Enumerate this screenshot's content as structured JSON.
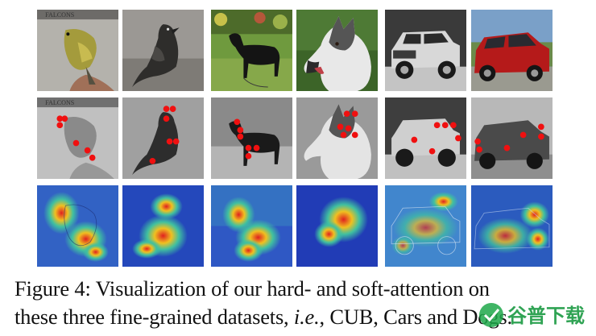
{
  "caption": {
    "line1": "Figure 4: Visualization of our hard- and soft-attention on",
    "line2_before": "these three fine-grained datasets, ",
    "line2_ie": "i.e.",
    "line2_after": ", CUB, Cars and Dogs."
  },
  "rows": [
    {
      "name": "original-images"
    },
    {
      "name": "hard-attention-points"
    },
    {
      "name": "soft-attention-heatmaps"
    }
  ],
  "columns": [
    {
      "subject": "bird",
      "dataset": "CUB"
    },
    {
      "subject": "bird",
      "dataset": "CUB"
    },
    {
      "subject": "dog",
      "dataset": "Dogs"
    },
    {
      "subject": "dog",
      "dataset": "Dogs"
    },
    {
      "subject": "car",
      "dataset": "Cars"
    },
    {
      "subject": "car",
      "dataset": "Cars"
    }
  ],
  "colors": {
    "attention_point": "#f01010",
    "heatmap_cold": "#1c2fb0",
    "heatmap_hot": "#d81c1c"
  },
  "watermark": {
    "text": "谷普下载"
  }
}
